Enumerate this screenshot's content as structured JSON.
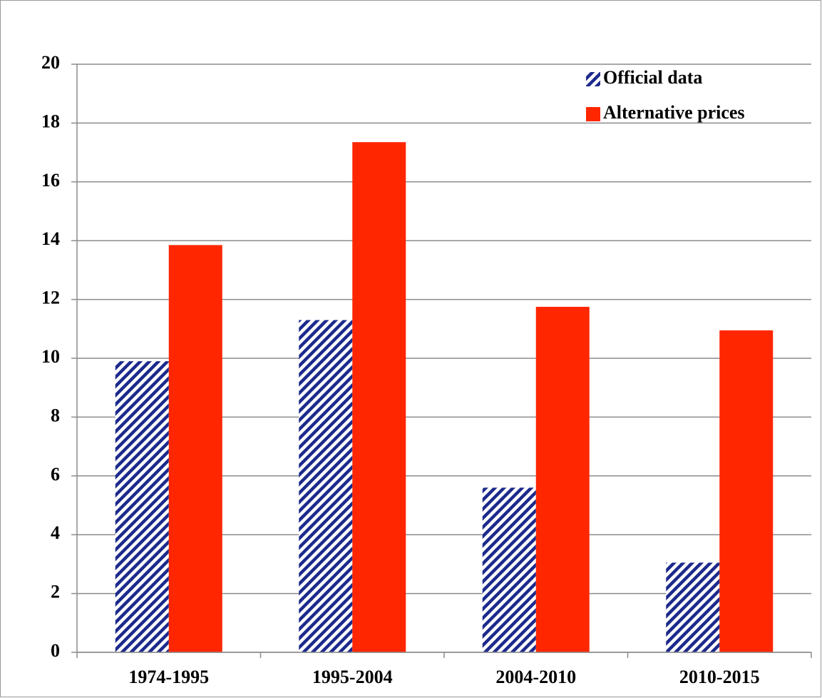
{
  "chart_data": {
    "type": "bar",
    "categories": [
      "1974-1995",
      "1995-2004",
      "2004-2010",
      "2010-2015"
    ],
    "series": [
      {
        "name": "Official data",
        "color": "#1c2a8c",
        "pattern": "diagonal-hatch",
        "values": [
          9.9,
          11.3,
          5.6,
          3.05
        ]
      },
      {
        "name": "Alternative prices",
        "color": "#ff2600",
        "values": [
          13.85,
          17.35,
          11.75,
          10.95
        ]
      }
    ],
    "ylim": [
      0,
      20
    ],
    "yticks": [
      0,
      2,
      4,
      6,
      8,
      10,
      12,
      14,
      16,
      18,
      20
    ],
    "grid": true,
    "legend": "top-right"
  }
}
